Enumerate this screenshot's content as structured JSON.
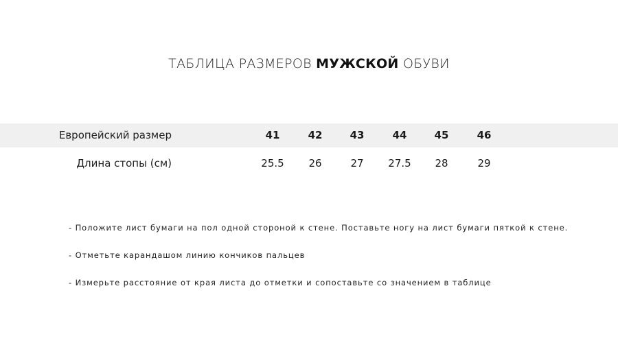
{
  "title": {
    "part1": "ТАБЛИЦА РАЗМЕРОВ",
    "bold": "МУЖСКОЙ",
    "part2": "ОБУВИ"
  },
  "table": {
    "rows": [
      {
        "label": "Европейский размер",
        "values": [
          "41",
          "42",
          "43",
          "44",
          "45",
          "46"
        ]
      },
      {
        "label": "Длина стопы (см)",
        "values": [
          "25.5",
          "26",
          "27",
          "27.5",
          "28",
          "29"
        ]
      }
    ]
  },
  "instructions": [
    "- Положите лист бумаги на пол одной стороной к стене. Поставьте ногу на лист бумаги пяткой к стене.",
    "- Отметьте карандашом линию кончиков пальцев",
    "- Измерьте расстояние от края листа до отметки и сопоставьте со значением в таблице"
  ]
}
